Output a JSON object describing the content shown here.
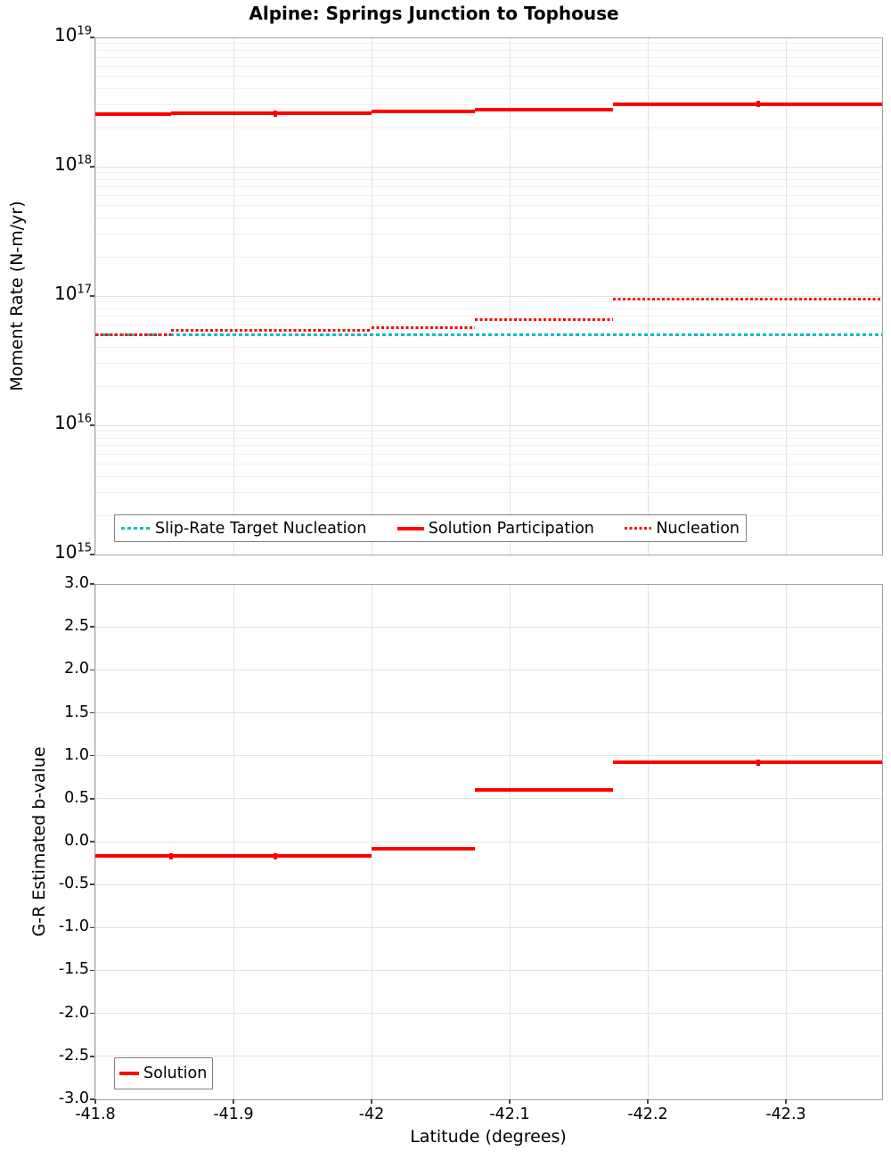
{
  "figure_title": "Alpine: Springs Junction to Tophouse",
  "accent_colors": {
    "red": "#ff0000",
    "teal": "#00bfbf"
  },
  "chart_data": [
    {
      "type": "line",
      "subtype": "step",
      "title": "Alpine: Springs Junction to Tophouse",
      "xlabel": "",
      "ylabel": "Moment Rate (N-m/yr)",
      "yscale": "log",
      "ylim": [
        1000000000000000.0,
        1e+19
      ],
      "xlim": [
        -41.8,
        -42.37
      ],
      "grid": true,
      "legend_position": "lower-left-inside",
      "y_ticks": [
        {
          "base": "10",
          "exp": "19",
          "log": 19
        },
        {
          "base": "10",
          "exp": "18",
          "log": 18
        },
        {
          "base": "10",
          "exp": "17",
          "log": 17
        },
        {
          "base": "10",
          "exp": "16",
          "log": 16
        },
        {
          "base": "10",
          "exp": "15",
          "log": 15
        }
      ],
      "segment_edges_latitude": [
        -41.8,
        -41.855,
        -41.93,
        -42.0,
        -42.075,
        -42.175,
        -42.28,
        -42.37
      ],
      "series": [
        {
          "name": "Slip-Rate Target Nucleation",
          "color": "#00bfbf",
          "style": "dotted",
          "values": [
            5e+16,
            5e+16,
            5e+16,
            5e+16,
            5e+16,
            5e+16,
            5e+16
          ]
        },
        {
          "name": "Solution Participation",
          "color": "#ff0000",
          "style": "solid",
          "values": [
            2.54e+18,
            2.59e+18,
            2.59e+18,
            2.69e+18,
            2.75e+18,
            3.05e+18,
            3.05e+18
          ]
        },
        {
          "name": "Nucleation",
          "color": "#ff0000",
          "style": "dotted",
          "values": [
            5e+16,
            5.4e+16,
            5.4e+16,
            5.7e+16,
            6.6e+16,
            9.4e+16,
            9.4e+16
          ]
        }
      ]
    },
    {
      "type": "line",
      "subtype": "step",
      "title": "",
      "xlabel": "Latitude (degrees)",
      "ylabel": "G-R Estimated b-value",
      "yscale": "linear",
      "ylim": [
        -3.0,
        3.0
      ],
      "xlim": [
        -41.8,
        -42.37
      ],
      "grid": true,
      "legend_position": "lower-left-inside",
      "y_ticks": [
        {
          "label": "3.0",
          "value": 3.0
        },
        {
          "label": "2.5",
          "value": 2.5
        },
        {
          "label": "2.0",
          "value": 2.0
        },
        {
          "label": "1.5",
          "value": 1.5
        },
        {
          "label": "1.0",
          "value": 1.0
        },
        {
          "label": "0.5",
          "value": 0.5
        },
        {
          "label": "0.0",
          "value": 0.0
        },
        {
          "label": "-0.5",
          "value": -0.5
        },
        {
          "label": "-1.0",
          "value": -1.0
        },
        {
          "label": "-1.5",
          "value": -1.5
        },
        {
          "label": "-2.0",
          "value": -2.0
        },
        {
          "label": "-2.5",
          "value": -2.5
        },
        {
          "label": "-3.0",
          "value": -3.0
        }
      ],
      "x_ticks": [
        {
          "label": "-41.8",
          "value": -41.8
        },
        {
          "label": "-41.9",
          "value": -41.9
        },
        {
          "label": "-42",
          "value": -42.0
        },
        {
          "label": "-42.1",
          "value": -42.1
        },
        {
          "label": "-42.2",
          "value": -42.2
        },
        {
          "label": "-42.3",
          "value": -42.3
        }
      ],
      "segment_edges_latitude": [
        -41.8,
        -41.855,
        -41.93,
        -42.0,
        -42.075,
        -42.175,
        -42.28,
        -42.37
      ],
      "series": [
        {
          "name": "Solution",
          "color": "#ff0000",
          "style": "solid",
          "values": [
            -0.17,
            -0.17,
            -0.17,
            -0.08,
            0.6,
            0.92,
            0.92
          ]
        }
      ]
    }
  ]
}
